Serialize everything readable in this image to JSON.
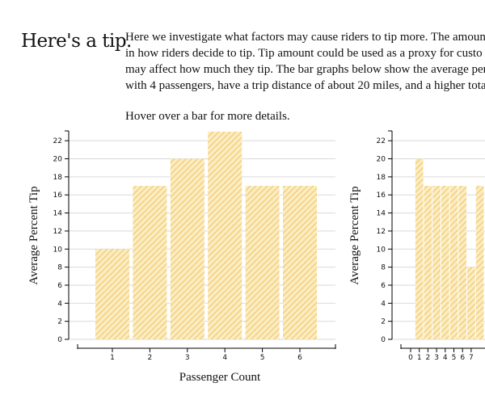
{
  "heading": "Here's a tip.",
  "intro_lines": [
    "Here we investigate what factors may cause riders to tip more. The amoun",
    "in how riders decide to tip. Tip amount could be used as a proxy for custo",
    "may affect how much they tip. The bar graphs below show the average per",
    "with 4 passengers, have a trip distance of about 20 miles, and a higher tota"
  ],
  "hover_note": "Hover over a bar for more details.",
  "colors": {
    "bar_hatch": "#f2cc6e",
    "gridline": "#d9d9d9",
    "axis": "#000000"
  },
  "chart_data": [
    {
      "type": "bar",
      "categories": [
        "1",
        "2",
        "3",
        "4",
        "5",
        "6"
      ],
      "values": [
        10,
        17,
        20,
        23,
        17,
        17
      ],
      "xlabel": "Passenger Count",
      "ylabel": "Average Percent Tip",
      "ylim": [
        0,
        23
      ],
      "yticks": [
        0,
        2,
        4,
        6,
        8,
        10,
        12,
        14,
        16,
        18,
        20,
        22
      ],
      "grid": true,
      "legend": "none"
    },
    {
      "type": "bar",
      "x_ticks": [
        "0",
        "1",
        "2",
        "3",
        "4",
        "5",
        "6",
        "7"
      ],
      "x": [
        1,
        2,
        3,
        4,
        5,
        6,
        7,
        8
      ],
      "values": [
        20,
        17,
        17,
        17,
        17,
        17,
        8,
        17
      ],
      "ylabel": "Average Percent Tip",
      "ylim": [
        0,
        23
      ],
      "yticks": [
        0,
        2,
        4,
        6,
        8,
        10,
        12,
        14,
        16,
        18,
        20,
        22
      ],
      "grid": true,
      "legend": "none"
    }
  ]
}
